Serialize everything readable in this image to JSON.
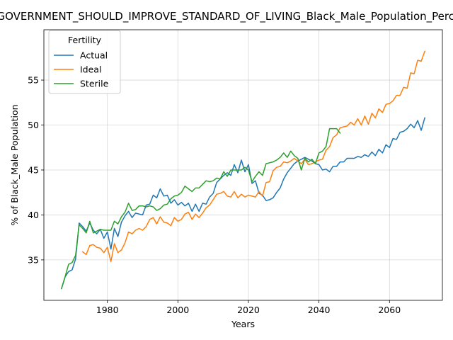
{
  "chart_data": {
    "type": "line",
    "title": "GOVERNMENT_SHOULD_IMPROVE_STANDARD_OF_LIVING_Black_Male_Population_Percentage",
    "xlabel": "Years",
    "ylabel": "% of Black_Male Population",
    "xlim": [
      1962,
      2075
    ],
    "ylim": [
      30.5,
      60.6
    ],
    "xticks": [
      1980,
      2000,
      2020,
      2040,
      2060
    ],
    "yticks": [
      35,
      40,
      45,
      50,
      55
    ],
    "grid": true,
    "legend": {
      "title": "Fertility",
      "placement": "top-left"
    },
    "series": [
      {
        "name": "Actual",
        "color": "#1f77b4",
        "x": [
          1967,
          1968,
          1969,
          1970,
          1971,
          1972,
          1973,
          1974,
          1975,
          1976,
          1977,
          1978,
          1979,
          1980,
          1981,
          1982,
          1983,
          1984,
          1985,
          1986,
          1987,
          1988,
          1989,
          1990,
          1991,
          1992,
          1993,
          1994,
          1995,
          1996,
          1997,
          1998,
          1999,
          2000,
          2001,
          2002,
          2003,
          2004,
          2005,
          2006,
          2007,
          2008,
          2009,
          2010,
          2011,
          2012,
          2013,
          2014,
          2015,
          2016,
          2017,
          2018,
          2019,
          2020,
          2021,
          2022,
          2023,
          2024,
          2025,
          2026,
          2027,
          2028,
          2029,
          2030,
          2031,
          2032,
          2033,
          2034,
          2035,
          2036,
          2037,
          2038,
          2039,
          2040,
          2041,
          2042,
          2043,
          2044,
          2045,
          2046,
          2047,
          2048,
          2049,
          2050,
          2051,
          2052,
          2053,
          2054,
          2055,
          2056,
          2057,
          2058,
          2059,
          2060,
          2061,
          2062,
          2063,
          2064,
          2065,
          2066,
          2067,
          2068,
          2069,
          2070
        ],
        "values": [
          31.8,
          33.1,
          33.7,
          33.9,
          35.1,
          39.1,
          38.7,
          38.2,
          39.1,
          38.3,
          37.9,
          38.4,
          37.4,
          38.1,
          36.2,
          38.5,
          37.6,
          39.2,
          39.9,
          40.4,
          39.7,
          40.2,
          40.1,
          40.0,
          41.1,
          41.2,
          42.2,
          41.9,
          42.9,
          42.1,
          42.2,
          41.3,
          41.7,
          41.1,
          41.4,
          41.0,
          41.3,
          40.4,
          41.2,
          40.4,
          41.3,
          41.2,
          42.0,
          42.4,
          43.6,
          44.0,
          44.4,
          44.7,
          44.4,
          45.6,
          44.7,
          46.1,
          44.8,
          45.6,
          43.5,
          43.8,
          42.4,
          42.2,
          41.6,
          41.7,
          41.9,
          42.5,
          43.0,
          44.0,
          44.7,
          45.2,
          45.7,
          46.0,
          46.2,
          46.4,
          46.2,
          46.0,
          45.7,
          45.6,
          45.0,
          45.1,
          44.8,
          45.4,
          45.4,
          45.9,
          45.9,
          46.3,
          46.3,
          46.3,
          46.5,
          46.4,
          46.7,
          46.5,
          47.0,
          46.6,
          47.3,
          46.9,
          47.8,
          47.5,
          48.5,
          48.4,
          49.2,
          49.3,
          49.6,
          50.1,
          49.7,
          50.5,
          49.4,
          50.8
        ]
      },
      {
        "name": "Ideal",
        "color": "#ff7f0e",
        "x": [
          1973,
          1974,
          1975,
          1976,
          1977,
          1978,
          1979,
          1980,
          1981,
          1982,
          1983,
          1984,
          1985,
          1986,
          1987,
          1988,
          1989,
          1990,
          1991,
          1992,
          1993,
          1994,
          1995,
          1996,
          1997,
          1998,
          1999,
          2000,
          2001,
          2002,
          2003,
          2004,
          2005,
          2006,
          2007,
          2008,
          2009,
          2010,
          2011,
          2012,
          2013,
          2014,
          2015,
          2016,
          2017,
          2018,
          2019,
          2020,
          2021,
          2022,
          2023,
          2024,
          2025,
          2026,
          2027,
          2028,
          2029,
          2030,
          2031,
          2032,
          2033,
          2034,
          2035,
          2036,
          2037,
          2038,
          2039,
          2040,
          2041,
          2042,
          2043,
          2044,
          2045,
          2046,
          2047,
          2048,
          2049,
          2050,
          2051,
          2052,
          2053,
          2054,
          2055,
          2056,
          2057,
          2058,
          2059,
          2060,
          2061,
          2062,
          2063,
          2064,
          2065,
          2066,
          2067,
          2068,
          2069,
          2070
        ],
        "values": [
          35.9,
          35.6,
          36.6,
          36.7,
          36.4,
          36.3,
          35.8,
          36.4,
          34.8,
          36.8,
          35.8,
          36.1,
          36.9,
          38.1,
          37.9,
          38.3,
          38.5,
          38.3,
          38.7,
          39.5,
          39.7,
          39.0,
          39.8,
          39.2,
          39.1,
          38.8,
          39.7,
          39.3,
          39.5,
          40.1,
          40.3,
          39.5,
          40.1,
          39.7,
          40.2,
          40.8,
          41.1,
          41.7,
          42.3,
          42.4,
          42.6,
          42.1,
          42.0,
          42.6,
          41.9,
          42.3,
          42.0,
          42.2,
          42.1,
          42.0,
          42.6,
          42.1,
          43.6,
          43.7,
          44.9,
          45.3,
          45.4,
          45.9,
          45.8,
          46.0,
          46.3,
          46.0,
          45.7,
          46.2,
          45.6,
          45.7,
          45.9,
          46.1,
          46.2,
          47.2,
          47.6,
          48.6,
          48.9,
          49.7,
          49.8,
          49.9,
          50.3,
          50.0,
          50.7,
          50.0,
          51.0,
          50.1,
          51.3,
          50.8,
          51.8,
          51.4,
          52.3,
          52.4,
          52.7,
          53.3,
          53.3,
          54.2,
          54.1,
          55.8,
          55.7,
          57.2,
          57.1,
          58.2
        ]
      },
      {
        "name": "Sterile",
        "color": "#2ca02c",
        "x": [
          1967,
          1968,
          1969,
          1970,
          1971,
          1972,
          1973,
          1974,
          1975,
          1976,
          1977,
          1978,
          1979,
          1980,
          1981,
          1982,
          1983,
          1984,
          1985,
          1986,
          1987,
          1988,
          1989,
          1990,
          1991,
          1992,
          1993,
          1994,
          1995,
          1996,
          1997,
          1998,
          1999,
          2000,
          2001,
          2002,
          2003,
          2004,
          2005,
          2006,
          2007,
          2008,
          2009,
          2010,
          2011,
          2012,
          2013,
          2014,
          2015,
          2016,
          2017,
          2018,
          2019,
          2020,
          2021,
          2022,
          2023,
          2024,
          2025,
          2026,
          2027,
          2028,
          2029,
          2030,
          2031,
          2032,
          2033,
          2034,
          2035,
          2036,
          2037,
          2038,
          2039,
          2040,
          2041,
          2042,
          2043,
          2044,
          2045,
          2046
        ],
        "values": [
          31.8,
          33.1,
          34.5,
          34.7,
          35.5,
          38.9,
          38.5,
          38.0,
          39.3,
          38.0,
          38.2,
          38.4,
          38.3,
          38.3,
          38.3,
          39.3,
          39.0,
          39.8,
          40.3,
          41.3,
          40.5,
          40.6,
          41.0,
          41.0,
          40.9,
          41.0,
          40.9,
          40.5,
          40.7,
          41.1,
          41.2,
          41.8,
          42.1,
          42.2,
          42.5,
          43.2,
          42.9,
          42.6,
          43.0,
          43.0,
          43.4,
          43.8,
          43.7,
          43.8,
          44.1,
          44.0,
          44.8,
          44.3,
          45.0,
          45.0,
          45.0,
          45.0,
          45.3,
          45.0,
          43.7,
          44.3,
          44.8,
          44.4,
          45.7,
          45.8,
          45.9,
          46.1,
          46.4,
          46.9,
          46.4,
          47.1,
          46.6,
          46.3,
          45.0,
          46.3,
          45.9,
          46.2,
          45.7,
          46.9,
          47.1,
          47.6,
          49.6,
          49.6,
          49.6,
          49.1
        ]
      }
    ]
  }
}
